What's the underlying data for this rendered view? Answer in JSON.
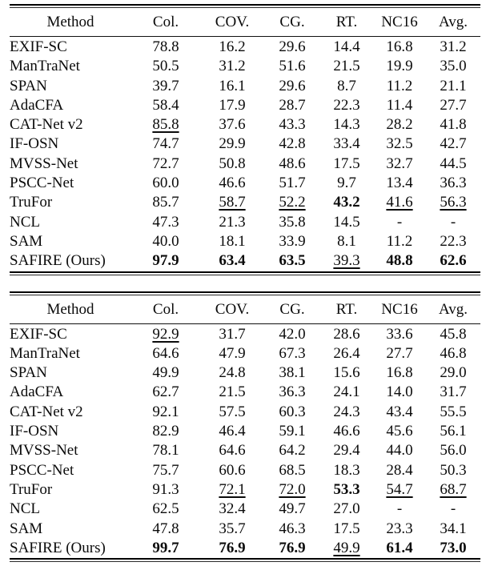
{
  "page": {
    "background": "#ffffff",
    "text_color": "#0b0b0b",
    "rule_color": "#000000"
  },
  "tables": [
    {
      "id": "results-table-1",
      "columns": [
        "Method",
        "Col.",
        "COV.",
        "CG.",
        "RT.",
        "NC16",
        "Avg."
      ],
      "rows": [
        {
          "method": "EXIF-SC",
          "values": [
            {
              "v": "78.8"
            },
            {
              "v": "16.2"
            },
            {
              "v": "29.6"
            },
            {
              "v": "14.4"
            },
            {
              "v": "16.8"
            },
            {
              "v": "31.2"
            }
          ]
        },
        {
          "method": "ManTraNet",
          "values": [
            {
              "v": "50.5"
            },
            {
              "v": "31.2"
            },
            {
              "v": "51.6"
            },
            {
              "v": "21.5"
            },
            {
              "v": "19.9"
            },
            {
              "v": "35.0"
            }
          ]
        },
        {
          "method": "SPAN",
          "values": [
            {
              "v": "39.7"
            },
            {
              "v": "16.1"
            },
            {
              "v": "29.6"
            },
            {
              "v": "8.7"
            },
            {
              "v": "11.2"
            },
            {
              "v": "21.1"
            }
          ]
        },
        {
          "method": "AdaCFA",
          "values": [
            {
              "v": "58.4"
            },
            {
              "v": "17.9"
            },
            {
              "v": "28.7"
            },
            {
              "v": "22.3"
            },
            {
              "v": "11.4"
            },
            {
              "v": "27.7"
            }
          ]
        },
        {
          "method": "CAT-Net v2",
          "values": [
            {
              "v": "85.8",
              "style": "underline"
            },
            {
              "v": "37.6"
            },
            {
              "v": "43.3"
            },
            {
              "v": "14.3"
            },
            {
              "v": "28.2"
            },
            {
              "v": "41.8"
            }
          ]
        },
        {
          "method": "IF-OSN",
          "values": [
            {
              "v": "74.7"
            },
            {
              "v": "29.9"
            },
            {
              "v": "42.8"
            },
            {
              "v": "33.4"
            },
            {
              "v": "32.5"
            },
            {
              "v": "42.7"
            }
          ]
        },
        {
          "method": "MVSS-Net",
          "values": [
            {
              "v": "72.7"
            },
            {
              "v": "50.8"
            },
            {
              "v": "48.6"
            },
            {
              "v": "17.5"
            },
            {
              "v": "32.7"
            },
            {
              "v": "44.5"
            }
          ]
        },
        {
          "method": "PSCC-Net",
          "values": [
            {
              "v": "60.0"
            },
            {
              "v": "46.6"
            },
            {
              "v": "51.7"
            },
            {
              "v": "9.7"
            },
            {
              "v": "13.4"
            },
            {
              "v": "36.3"
            }
          ]
        },
        {
          "method": "TruFor",
          "values": [
            {
              "v": "85.7"
            },
            {
              "v": "58.7",
              "style": "underline"
            },
            {
              "v": "52.2",
              "style": "underline"
            },
            {
              "v": "43.2",
              "style": "bold"
            },
            {
              "v": "41.6",
              "style": "underline"
            },
            {
              "v": "56.3",
              "style": "underline"
            }
          ]
        },
        {
          "method": "NCL",
          "values": [
            {
              "v": "47.3"
            },
            {
              "v": "21.3"
            },
            {
              "v": "35.8"
            },
            {
              "v": "14.5"
            },
            {
              "v": "-"
            },
            {
              "v": "-"
            }
          ]
        },
        {
          "method": "SAM",
          "values": [
            {
              "v": "40.0"
            },
            {
              "v": "18.1"
            },
            {
              "v": "33.9"
            },
            {
              "v": "8.1"
            },
            {
              "v": "11.2"
            },
            {
              "v": "22.3"
            }
          ]
        },
        {
          "method": "SAFIRE (Ours)",
          "values": [
            {
              "v": "97.9",
              "style": "bold"
            },
            {
              "v": "63.4",
              "style": "bold"
            },
            {
              "v": "63.5",
              "style": "bold"
            },
            {
              "v": "39.3",
              "style": "underline"
            },
            {
              "v": "48.8",
              "style": "bold"
            },
            {
              "v": "62.6",
              "style": "bold"
            }
          ]
        }
      ]
    },
    {
      "id": "results-table-2",
      "columns": [
        "Method",
        "Col.",
        "COV.",
        "CG.",
        "RT.",
        "NC16",
        "Avg."
      ],
      "rows": [
        {
          "method": "EXIF-SC",
          "values": [
            {
              "v": "92.9",
              "style": "underline"
            },
            {
              "v": "31.7"
            },
            {
              "v": "42.0"
            },
            {
              "v": "28.6"
            },
            {
              "v": "33.6"
            },
            {
              "v": "45.8"
            }
          ]
        },
        {
          "method": "ManTraNet",
          "values": [
            {
              "v": "64.6"
            },
            {
              "v": "47.9"
            },
            {
              "v": "67.3"
            },
            {
              "v": "26.4"
            },
            {
              "v": "27.7"
            },
            {
              "v": "46.8"
            }
          ]
        },
        {
          "method": "SPAN",
          "values": [
            {
              "v": "49.9"
            },
            {
              "v": "24.8"
            },
            {
              "v": "38.1"
            },
            {
              "v": "15.6"
            },
            {
              "v": "16.8"
            },
            {
              "v": "29.0"
            }
          ]
        },
        {
          "method": "AdaCFA",
          "values": [
            {
              "v": "62.7"
            },
            {
              "v": "21.5"
            },
            {
              "v": "36.3"
            },
            {
              "v": "24.1"
            },
            {
              "v": "14.0"
            },
            {
              "v": "31.7"
            }
          ]
        },
        {
          "method": "CAT-Net v2",
          "values": [
            {
              "v": "92.1"
            },
            {
              "v": "57.5"
            },
            {
              "v": "60.3"
            },
            {
              "v": "24.3"
            },
            {
              "v": "43.4"
            },
            {
              "v": "55.5"
            }
          ]
        },
        {
          "method": "IF-OSN",
          "values": [
            {
              "v": "82.9"
            },
            {
              "v": "46.4"
            },
            {
              "v": "59.1"
            },
            {
              "v": "46.6"
            },
            {
              "v": "45.6"
            },
            {
              "v": "56.1"
            }
          ]
        },
        {
          "method": "MVSS-Net",
          "values": [
            {
              "v": "78.1"
            },
            {
              "v": "64.6"
            },
            {
              "v": "64.2"
            },
            {
              "v": "29.4"
            },
            {
              "v": "44.0"
            },
            {
              "v": "56.0"
            }
          ]
        },
        {
          "method": "PSCC-Net",
          "values": [
            {
              "v": "75.7"
            },
            {
              "v": "60.6"
            },
            {
              "v": "68.5"
            },
            {
              "v": "18.3"
            },
            {
              "v": "28.4"
            },
            {
              "v": "50.3"
            }
          ]
        },
        {
          "method": "TruFor",
          "values": [
            {
              "v": "91.3"
            },
            {
              "v": "72.1",
              "style": "underline"
            },
            {
              "v": "72.0",
              "style": "underline"
            },
            {
              "v": "53.3",
              "style": "bold"
            },
            {
              "v": "54.7",
              "style": "underline"
            },
            {
              "v": "68.7",
              "style": "underline"
            }
          ]
        },
        {
          "method": "NCL",
          "values": [
            {
              "v": "62.5"
            },
            {
              "v": "32.4"
            },
            {
              "v": "49.7"
            },
            {
              "v": "27.0"
            },
            {
              "v": "-"
            },
            {
              "v": "-"
            }
          ]
        },
        {
          "method": "SAM",
          "values": [
            {
              "v": "47.8"
            },
            {
              "v": "35.7"
            },
            {
              "v": "46.3"
            },
            {
              "v": "17.5"
            },
            {
              "v": "23.3"
            },
            {
              "v": "34.1"
            }
          ]
        },
        {
          "method": "SAFIRE (Ours)",
          "values": [
            {
              "v": "99.7",
              "style": "bold"
            },
            {
              "v": "76.9",
              "style": "bold"
            },
            {
              "v": "76.9",
              "style": "bold"
            },
            {
              "v": "49.9",
              "style": "underline"
            },
            {
              "v": "61.4",
              "style": "bold"
            },
            {
              "v": "73.0",
              "style": "bold"
            }
          ]
        }
      ]
    }
  ]
}
